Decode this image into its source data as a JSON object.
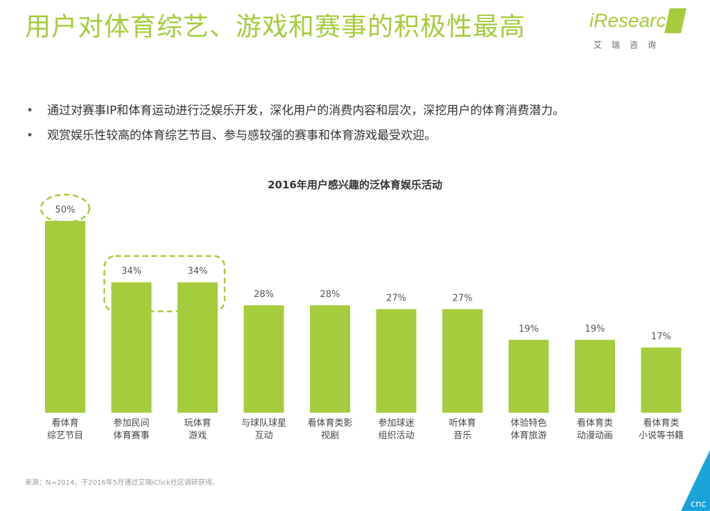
{
  "page": {
    "title": "用户对体育综艺、游戏和赛事的积极性最高",
    "logo": {
      "word": "iResearch",
      "sub": "艾瑞咨询"
    },
    "bullets": [
      "通过对赛事IP和体育运动进行泛娱乐开发，深化用户的消费内容和层次，深挖用户的体育消费潜力。",
      "观赏娱乐性较高的体育综艺节目、参与感较强的赛事和体育游戏最受欢迎。"
    ],
    "source": "来源：N=2014，于2016年5月通过艾瑞iClick社区调研获得。",
    "watermark": "cnc"
  },
  "chart_data": {
    "type": "bar",
    "title": "2016年用户感兴趣的泛体育娱乐活动",
    "categories": [
      [
        "看体育",
        "综艺节目"
      ],
      [
        "参加民间",
        "体育赛事"
      ],
      [
        "玩体育",
        "游戏"
      ],
      [
        "与球队球星",
        "互动"
      ],
      [
        "看体育类影",
        "视剧"
      ],
      [
        "参加球迷",
        "组织活动"
      ],
      [
        "听体育",
        "音乐"
      ],
      [
        "体验特色",
        "体育旅游"
      ],
      [
        "看体育类",
        "动漫动画"
      ],
      [
        "看体育类",
        "小说等书籍"
      ]
    ],
    "values": [
      50,
      34,
      34,
      28,
      28,
      27,
      27,
      19,
      19,
      17
    ],
    "labels": [
      "50%",
      "34%",
      "34%",
      "28%",
      "28%",
      "27%",
      "27%",
      "19%",
      "19%",
      "17%"
    ],
    "highlights": [
      [
        0,
        0
      ],
      [
        1,
        2
      ]
    ],
    "ylim": [
      0,
      52
    ],
    "grid": false,
    "legend": "none",
    "color": "#a5cc3c",
    "highlight_color": "#a5cc3c"
  }
}
